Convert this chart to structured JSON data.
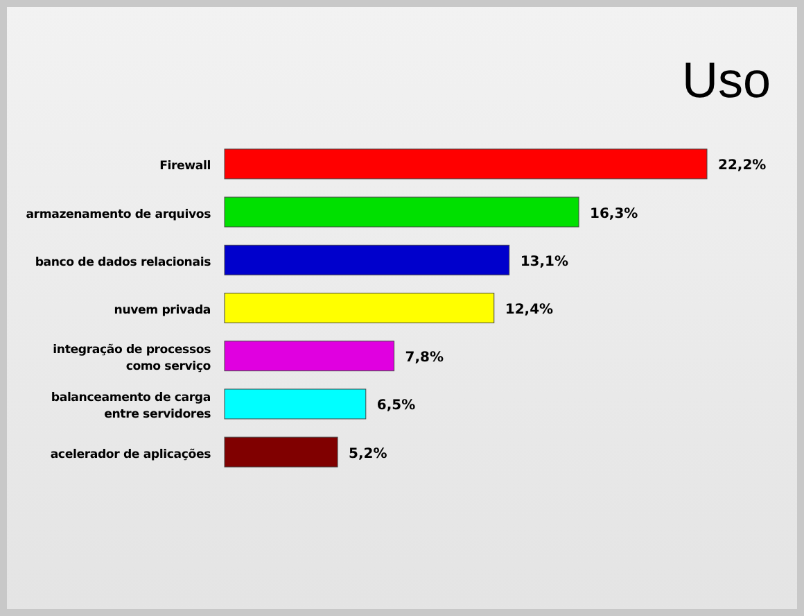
{
  "chart_data": {
    "type": "bar",
    "orientation": "horizontal",
    "title": "Uso",
    "categories": [
      "Firewall",
      "armazenamento de arquivos",
      "banco de dados relacionais",
      "nuvem privada",
      "integração de processos\ncomo serviço",
      "balanceamento de carga\nentre servidores",
      "acelerador de aplicações"
    ],
    "values": [
      22.2,
      16.3,
      13.1,
      12.4,
      7.8,
      6.5,
      5.2
    ],
    "colors": [
      "#ff0000",
      "#00e000",
      "#0000cc",
      "#ffff00",
      "#e000e0",
      "#00ffff",
      "#800000"
    ],
    "value_labels": [
      "22,2%",
      "16,3%",
      "13,1%",
      "12,4%",
      "7,8%",
      "6,5%",
      "5,2%"
    ]
  }
}
